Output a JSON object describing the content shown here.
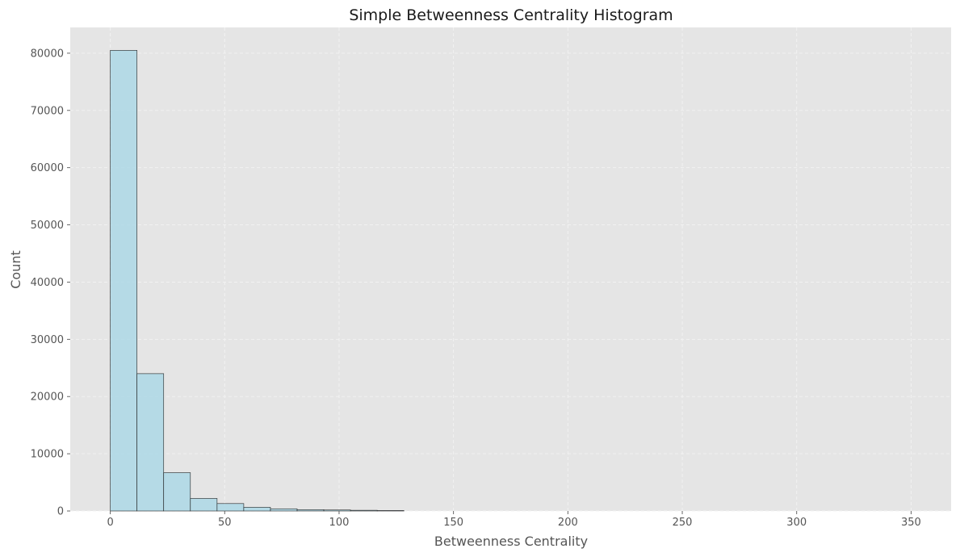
{
  "chart_data": {
    "type": "bar",
    "title": "Simple Betweenness Centrality Histogram",
    "xlabel": "Betweenness Centrality",
    "ylabel": "Count",
    "xlim": [
      -17.5,
      367.5
    ],
    "ylim": [
      0,
      84500
    ],
    "xticks": [
      0,
      50,
      100,
      150,
      200,
      250,
      300,
      350
    ],
    "yticks": [
      0,
      10000,
      20000,
      30000,
      40000,
      50000,
      60000,
      70000,
      80000
    ],
    "grid": true,
    "bins": {
      "edges": [
        0,
        11.67,
        23.33,
        35,
        46.67,
        58.33,
        70,
        81.67,
        93.33,
        105,
        116.67,
        128.33,
        140,
        151.67,
        163.33,
        175,
        186.67,
        198.33,
        210,
        221.67,
        233.33,
        245,
        256.67,
        268.33,
        280,
        291.67,
        303.33,
        315,
        326.67,
        338.33,
        350
      ],
      "counts": [
        80500,
        24000,
        6700,
        2200,
        1300,
        650,
        380,
        230,
        180,
        120,
        80,
        0,
        0,
        0,
        0,
        0,
        0,
        0,
        0,
        0,
        0,
        0,
        0,
        0,
        0,
        0,
        0,
        0,
        0,
        0
      ]
    },
    "colors": {
      "bar_fill": "#add8e6",
      "bar_edge": "#1f1f1f",
      "plot_background": "#e5e5e5",
      "grid": "#f3f3f3"
    }
  }
}
